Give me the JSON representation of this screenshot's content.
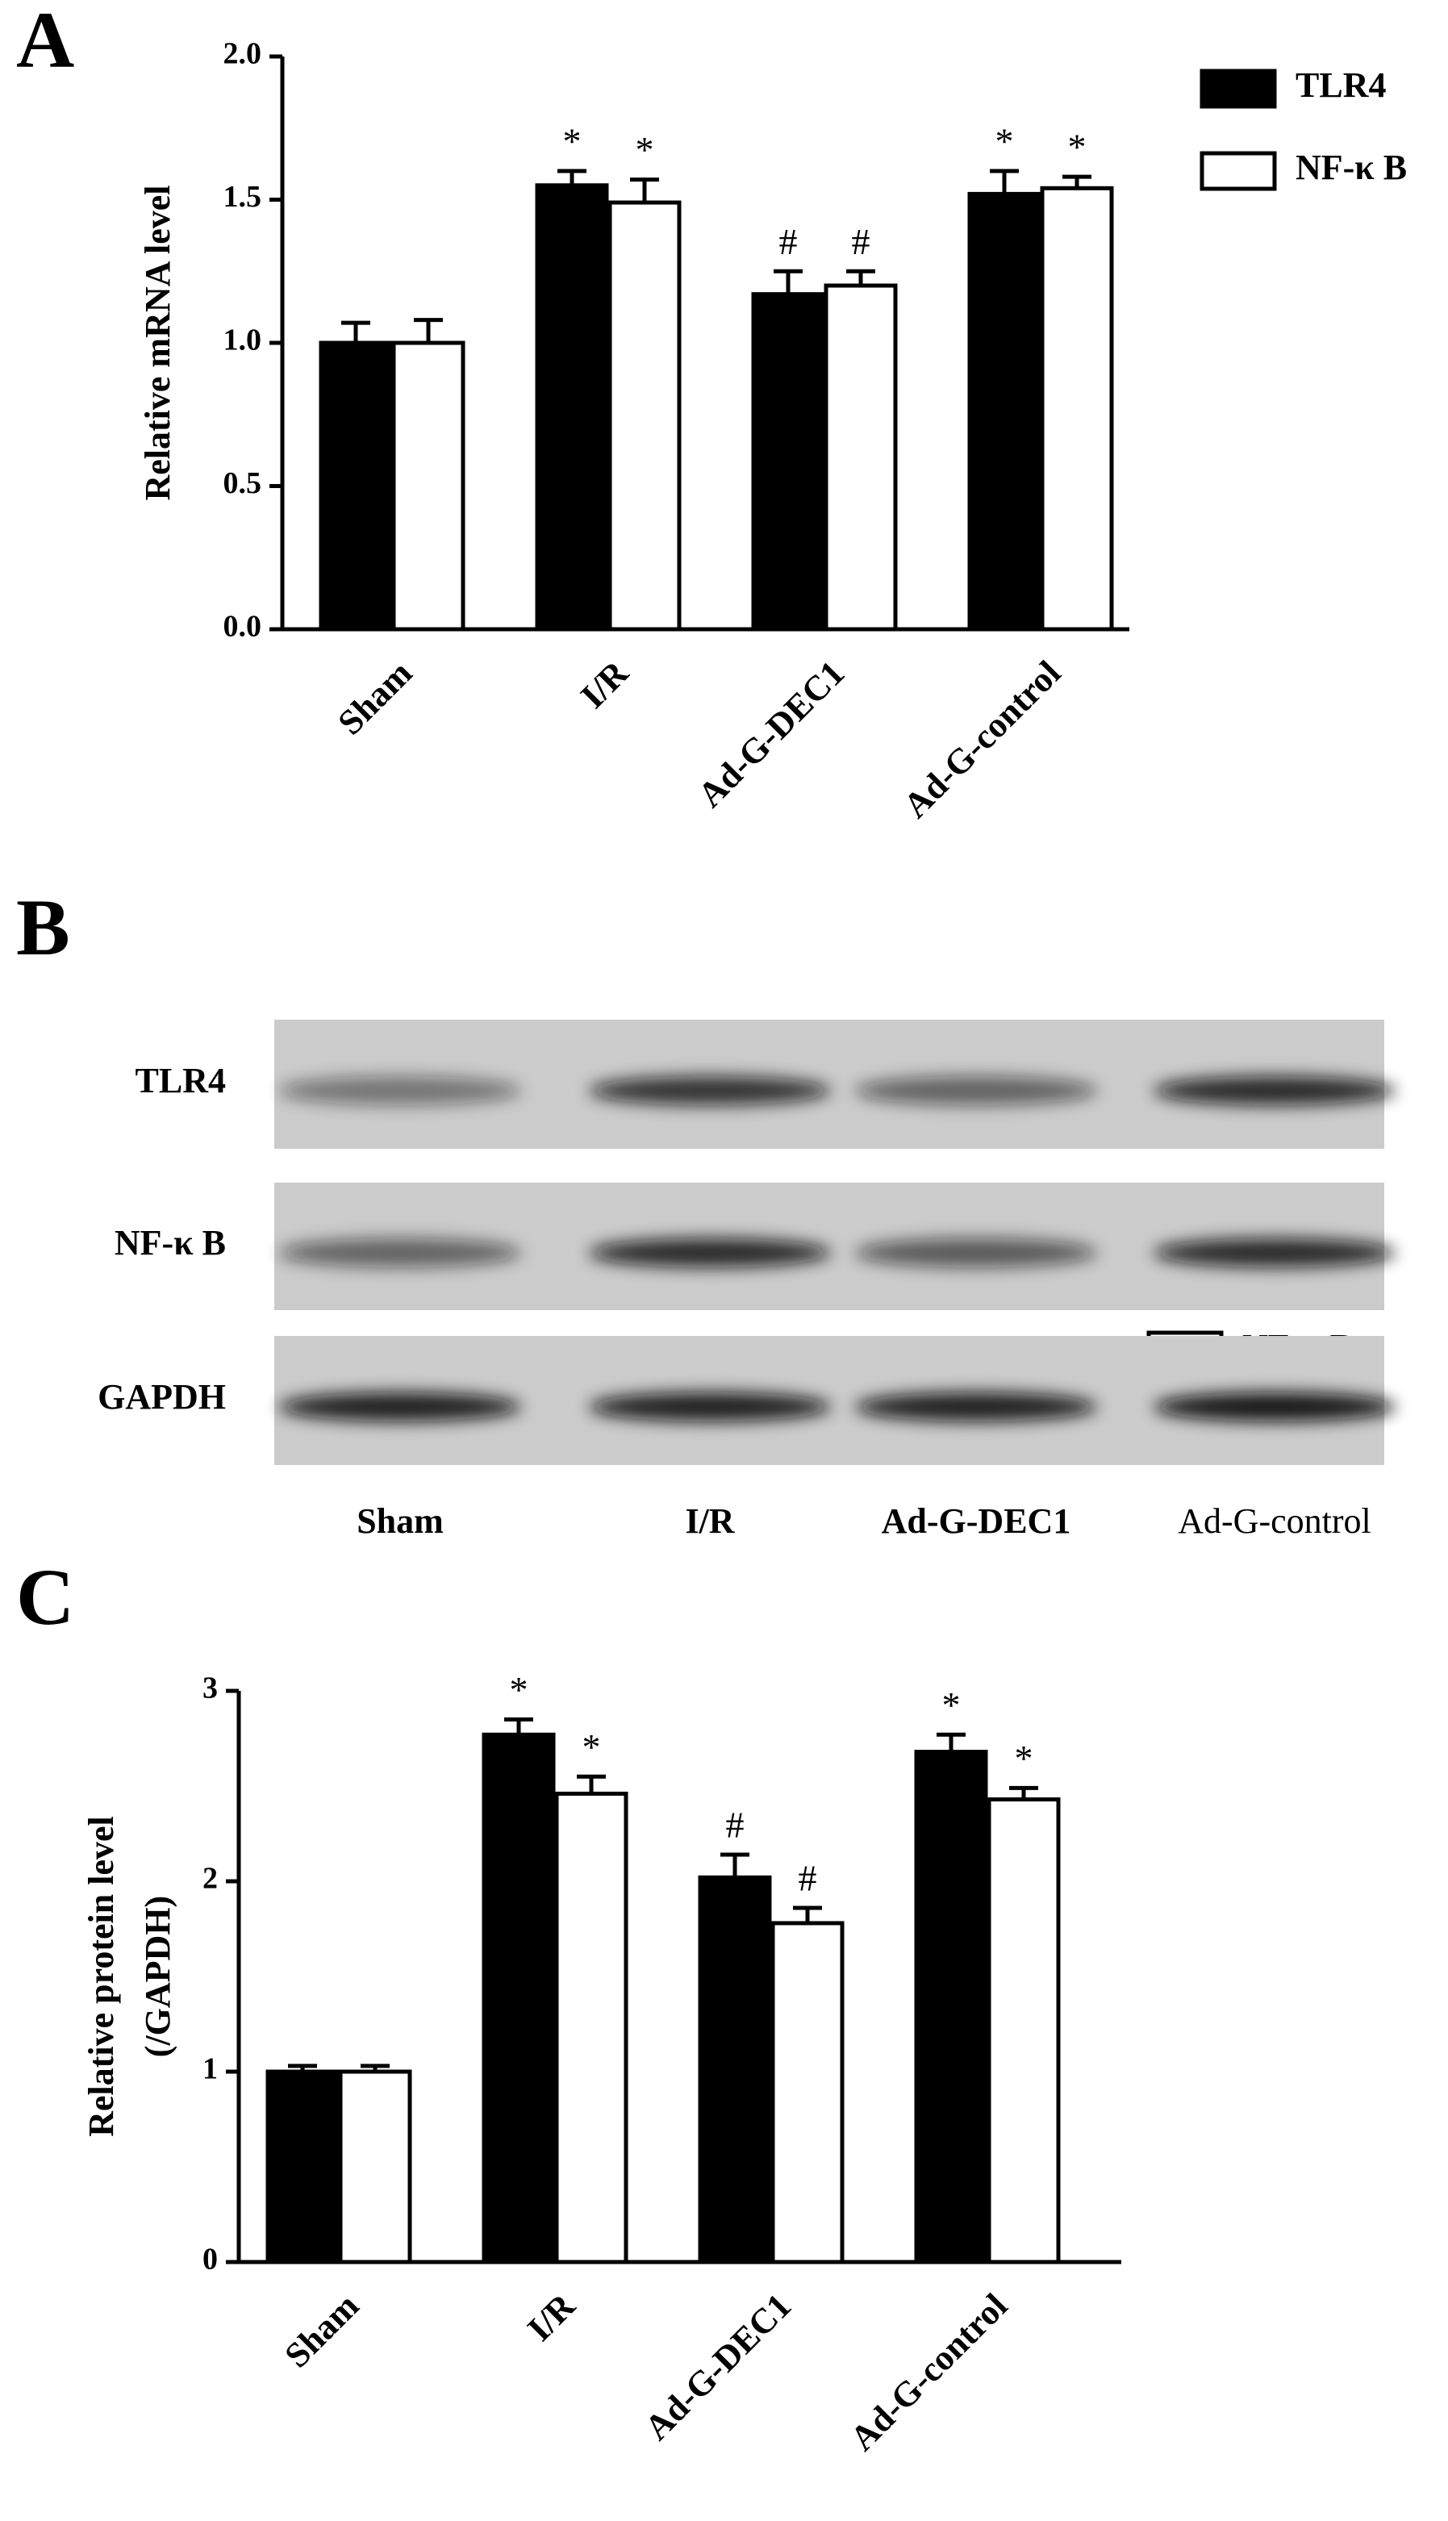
{
  "chart_data": [
    {
      "type": "bar",
      "panel_label": "A",
      "ylabel": "Relative mRNA level",
      "categories": [
        "Sham",
        "I/R",
        "Ad-G-DEC1",
        "Ad-G-control"
      ],
      "series": [
        {
          "name": "TLR4",
          "color": "#000000",
          "values": [
            1.0,
            1.55,
            1.17,
            1.52
          ],
          "errors": [
            0.07,
            0.05,
            0.08,
            0.08
          ],
          "annotations": [
            null,
            "*",
            "#",
            "*"
          ]
        },
        {
          "name": "NF-κ B",
          "color": "#ffffff",
          "values": [
            1.0,
            1.49,
            1.2,
            1.54
          ],
          "errors": [
            0.08,
            0.08,
            0.05,
            0.04
          ],
          "annotations": [
            null,
            "*",
            "#",
            "*"
          ]
        }
      ],
      "ylim": [
        0,
        2
      ],
      "yticks": [
        {
          "value": 0,
          "label": "0.0"
        },
        {
          "value": 0.5,
          "label": "0.5"
        },
        {
          "value": 1,
          "label": "1.0"
        },
        {
          "value": 1.5,
          "label": "1.5"
        },
        {
          "value": 2,
          "label": "2.0"
        }
      ],
      "legend": "top-right"
    },
    {
      "type": "bar",
      "panel_label": "C",
      "ylabel": [
        "Relative protein level",
        "(/GAPDH)"
      ],
      "categories": [
        "Sham",
        "I/R",
        "Ad-G-DEC1",
        "Ad-G-control"
      ],
      "series": [
        {
          "name": "TLR4",
          "color": "#000000",
          "values": [
            1.0,
            2.77,
            2.02,
            2.68
          ],
          "errors": [
            0.03,
            0.08,
            0.12,
            0.09
          ],
          "annotations": [
            null,
            "*",
            "#",
            "*"
          ]
        },
        {
          "name": "NF-κ B",
          "color": "#ffffff",
          "values": [
            1.0,
            2.46,
            1.78,
            2.43
          ],
          "errors": [
            0.03,
            0.09,
            0.08,
            0.06
          ],
          "annotations": [
            null,
            "*",
            "#",
            "*"
          ]
        }
      ],
      "ylim": [
        0,
        3
      ],
      "yticks": [
        0,
        1,
        2,
        3
      ],
      "legend": "top-right"
    }
  ],
  "blot": {
    "panel_label": "B",
    "rows": [
      "TLR4",
      "NF-κ B",
      "GAPDH"
    ],
    "columns": [
      "Sham",
      "I/R",
      "Ad-G-DEC1",
      "Ad-G-control"
    ]
  }
}
